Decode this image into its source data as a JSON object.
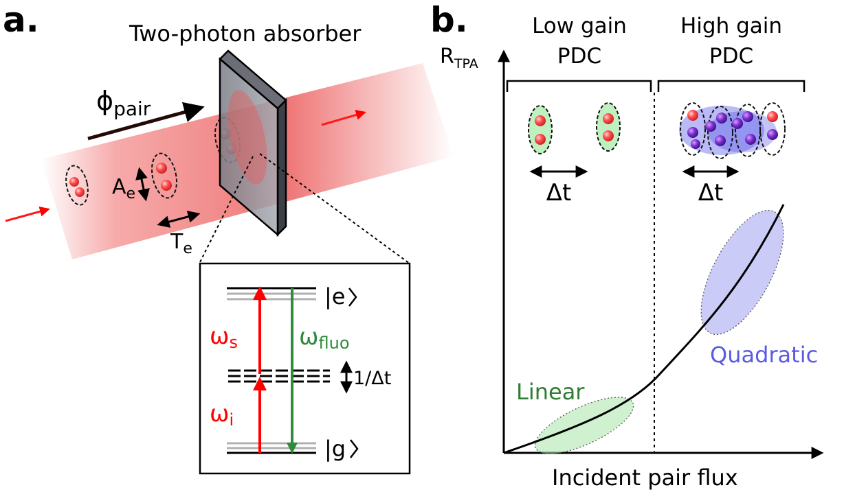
{
  "panel_a": {
    "letter": "a.",
    "absorber_label": "Two-photon absorber",
    "phi_symbol": "ϕ",
    "phi_sub": "pair",
    "area_symbol": "A",
    "area_sub": "e",
    "time_symbol": "T",
    "time_sub": "e",
    "beam_color": "#e83a3a",
    "inset": {
      "excited_state": "|e",
      "ground_state": "|g",
      "omega_s": "ω",
      "omega_s_sub": "s",
      "omega_i": "ω",
      "omega_i_sub": "i",
      "omega_fluo": "ω",
      "omega_fluo_sub": "fluo",
      "linewidth_label": "1/Δt",
      "pump_color": "#ff0000",
      "fluo_color": "#2e8b3c"
    }
  },
  "panel_b": {
    "letter": "b.",
    "y_axis_symbol": "R",
    "y_axis_sub": "TPA",
    "x_axis_label": "Incident pair flux",
    "low_gain_line1": "Low gain",
    "low_gain_line2": "PDC",
    "high_gain_line1": "High gain",
    "high_gain_line2": "PDC",
    "delta_t_low": "Δt",
    "delta_t_high": "Δt",
    "linear_label": "Linear",
    "quadratic_label": "Quadratic",
    "linear_color": "#2e7d32",
    "quadratic_color": "#5a5ae6"
  }
}
